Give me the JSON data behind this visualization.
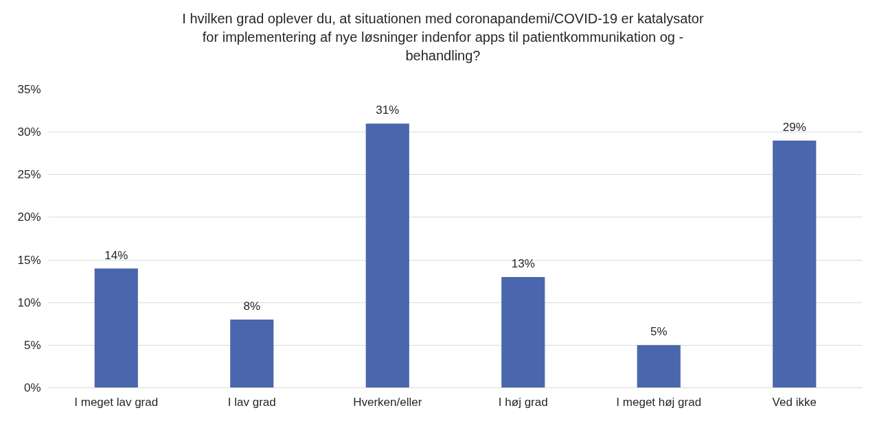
{
  "chart_data": {
    "type": "bar",
    "title": "I hvilken grad oplever du, at situationen med coronapandemi/COVID-19 er katalysator\nfor implementering af nye løsninger indenfor apps til patientkommunikation og -\nbehandling?",
    "categories": [
      "I meget lav grad",
      "I lav grad",
      "Hverken/eller",
      "I høj grad",
      "I meget høj grad",
      "Ved ikke"
    ],
    "values": [
      14,
      8,
      31,
      13,
      5,
      29
    ],
    "value_labels": [
      "14%",
      "8%",
      "31%",
      "13%",
      "5%",
      "29%"
    ],
    "color": "#4a67ad",
    "ylim": [
      0,
      35
    ],
    "yticks": [
      {
        "value": 0,
        "label": "0%"
      },
      {
        "value": 5,
        "label": "5%"
      },
      {
        "value": 10,
        "label": "10%"
      },
      {
        "value": 15,
        "label": "15%"
      },
      {
        "value": 20,
        "label": "20%"
      },
      {
        "value": 25,
        "label": "25%"
      },
      {
        "value": 30,
        "label": "30%"
      },
      {
        "value": 35,
        "label": "35%"
      }
    ],
    "grid": "y"
  }
}
